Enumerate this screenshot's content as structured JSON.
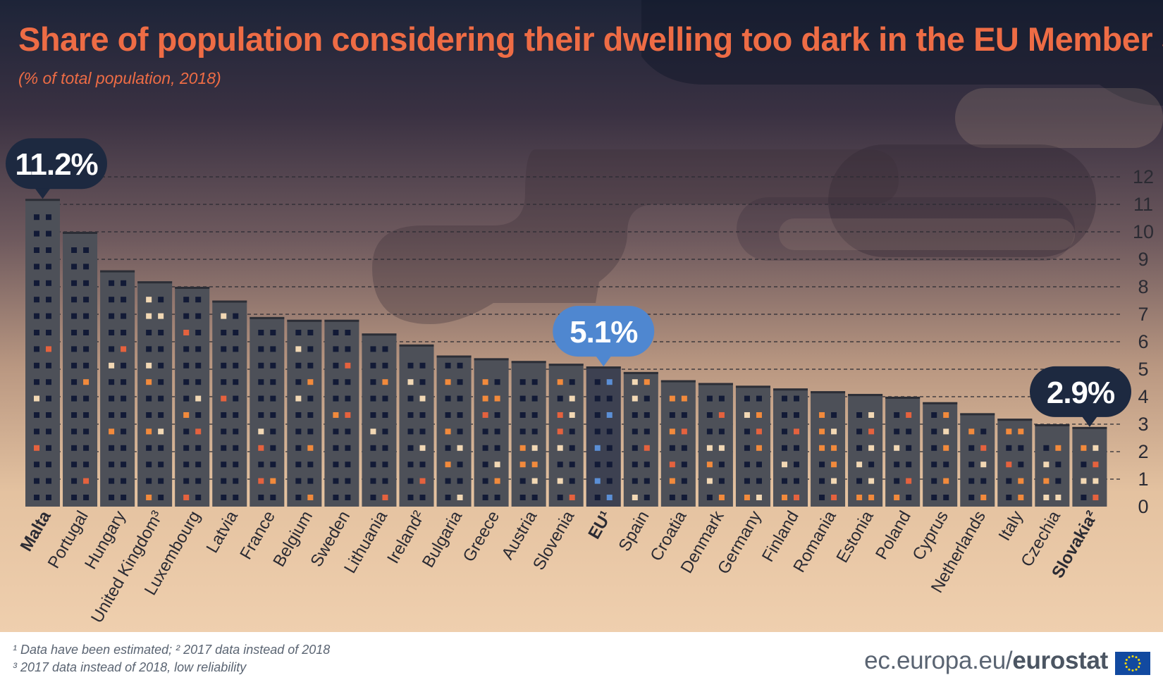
{
  "title": "Share of population considering their dwelling too dark in the EU Member States",
  "subtitle": "(% of total population, 2018)",
  "footnotes": [
    "¹ Data have been estimated; ²  2017 data instead of 2018",
    "³ 2017 data instead of 2018, low reliability"
  ],
  "brand": {
    "prefix": "ec.europa.eu/",
    "name": "eurostat"
  },
  "colors": {
    "title": "#ee6c45",
    "building": "#4d5058",
    "window_dark": "#121a36",
    "window_orange": "#f28a3c",
    "window_red": "#e5623e",
    "window_cream": "#f2d8b4",
    "eu_building": "#3d4151",
    "eu_window": "#5b8fd6",
    "callout_dark": "#1d2940",
    "callout_blue": "#4f87d0"
  },
  "chart_data": {
    "type": "bar",
    "title": "Share of population considering their dwelling too dark in the EU Member States",
    "subtitle": "(% of total population, 2018)",
    "xlabel": "",
    "ylabel": "",
    "ylim": [
      0,
      12
    ],
    "y_ticks": [
      "0",
      "1",
      "2",
      "3",
      "4",
      "5",
      "6",
      "7",
      "8",
      "9",
      "10",
      "11",
      "12"
    ],
    "grid": true,
    "y_axis_position": "right",
    "categories": [
      "Malta",
      "Portugal",
      "Hungary",
      "United Kingdom³",
      "Luxembourg",
      "Latvia",
      "France",
      "Belgium",
      "Sweden",
      "Lithuania",
      "Ireland²",
      "Bulgaria",
      "Greece",
      "Austria",
      "Slovenia",
      "EU¹",
      "Spain",
      "Croatia",
      "Denmark",
      "Germany",
      "Finland",
      "Romania",
      "Estonia",
      "Poland",
      "Cyprus",
      "Netherlands",
      "Italy",
      "Czechia",
      "Slovakia²"
    ],
    "values": [
      11.2,
      10.0,
      8.6,
      8.2,
      8.0,
      7.5,
      6.9,
      6.8,
      6.8,
      6.3,
      5.9,
      5.5,
      5.4,
      5.3,
      5.2,
      5.1,
      4.9,
      4.6,
      4.5,
      4.4,
      4.3,
      4.2,
      4.1,
      4.0,
      3.8,
      3.4,
      3.2,
      3.0,
      2.9
    ],
    "bold_categories": [
      "Malta",
      "EU¹",
      "Slovakia²"
    ],
    "highlight_category": "EU¹",
    "callouts": [
      {
        "category": "Malta",
        "label": "11.2%",
        "style": "dark"
      },
      {
        "category": "EU¹",
        "label": "5.1%",
        "style": "blue"
      },
      {
        "category": "Slovakia²",
        "label": "2.9%",
        "style": "dark"
      }
    ]
  }
}
